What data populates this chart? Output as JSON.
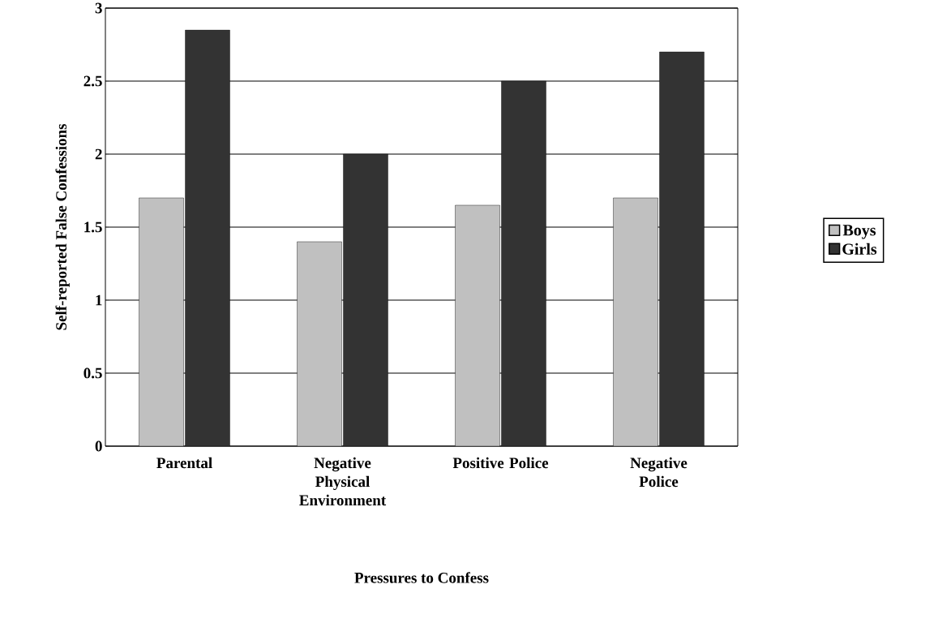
{
  "chart_data": {
    "type": "bar",
    "xlabel": "Pressures to Confess",
    "ylabel": "Self-reported False Confessions",
    "categories": [
      "Parental",
      "Negative Physical Environment",
      "Positive Police",
      "Negative Police"
    ],
    "series": [
      {
        "name": "Boys",
        "color": "#c0c0c0",
        "values": [
          1.7,
          1.4,
          1.65,
          1.7
        ]
      },
      {
        "name": "Girls",
        "color": "#333333",
        "values": [
          2.85,
          2.0,
          2.5,
          2.7
        ]
      }
    ],
    "ylim": [
      0,
      3
    ],
    "yticks": [
      0,
      0.5,
      1,
      1.5,
      2,
      2.5,
      3
    ],
    "grid": "y",
    "legend": "right"
  }
}
